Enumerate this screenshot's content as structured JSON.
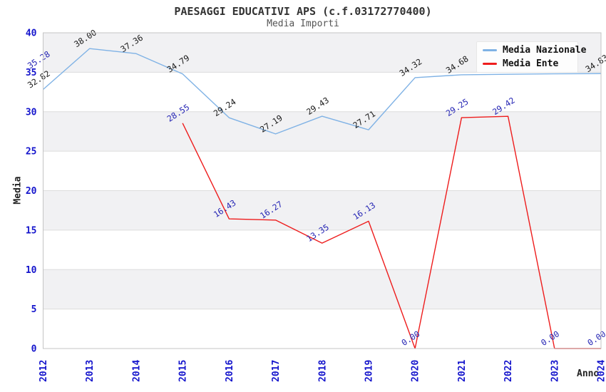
{
  "header": {
    "title": "PAESAGGI EDUCATIVI APS (c.f.03172770400)",
    "subtitle": "Media Importi"
  },
  "legend": {
    "items": [
      {
        "label": "Media Nazionale",
        "color": "#7fb2e5"
      },
      {
        "label": "Media Ente",
        "color": "#ee1c1c"
      }
    ]
  },
  "chart_data": {
    "type": "line",
    "title": "PAESAGGI EDUCATIVI APS (c.f.03172770400)",
    "subtitle": "Media Importi",
    "xlabel": "Anno",
    "ylabel": "Media",
    "x": [
      2012,
      2013,
      2014,
      2015,
      2016,
      2017,
      2018,
      2019,
      2020,
      2021,
      2022,
      2023,
      2024
    ],
    "ylim": [
      0,
      40
    ],
    "yticks": [
      0,
      5,
      10,
      15,
      20,
      25,
      30,
      35,
      40
    ],
    "grid": true,
    "legend_position": "top-right",
    "colors": {
      "tick_label": "#1414cc",
      "band_gray": "#f1f1f3",
      "gridline": "#dcdcdc",
      "frame": "#c4c4c4",
      "national_label": "#1a1a1a",
      "ente_label": "#2525b4"
    },
    "series": [
      {
        "name": "Media Nazionale",
        "color": "#7fb2e5",
        "label_color": "#1a1a1a",
        "values": [
          32.82,
          38.0,
          37.36,
          34.79,
          29.24,
          27.19,
          29.43,
          27.71,
          34.32,
          34.68,
          34.75,
          34.8,
          34.83
        ],
        "labels": [
          "32.82",
          "38.00",
          "37.36",
          "34.79",
          "29.24",
          "27.19",
          "29.43",
          "27.71",
          "34.32",
          "34.68",
          "",
          "",
          "34.83"
        ]
      },
      {
        "name": "Media Ente",
        "color": "#ee1c1c",
        "label_color": "#2525b4",
        "values": [
          35.28,
          null,
          null,
          28.55,
          16.43,
          16.27,
          13.35,
          16.13,
          0.0,
          29.25,
          29.42,
          0.0,
          0.0
        ],
        "labels": [
          "35.28",
          "",
          "",
          "28.55",
          "16.43",
          "16.27",
          "13.35",
          "16.13",
          "0.00",
          "29.25",
          "29.42",
          "0.00",
          "0.00"
        ]
      }
    ]
  }
}
